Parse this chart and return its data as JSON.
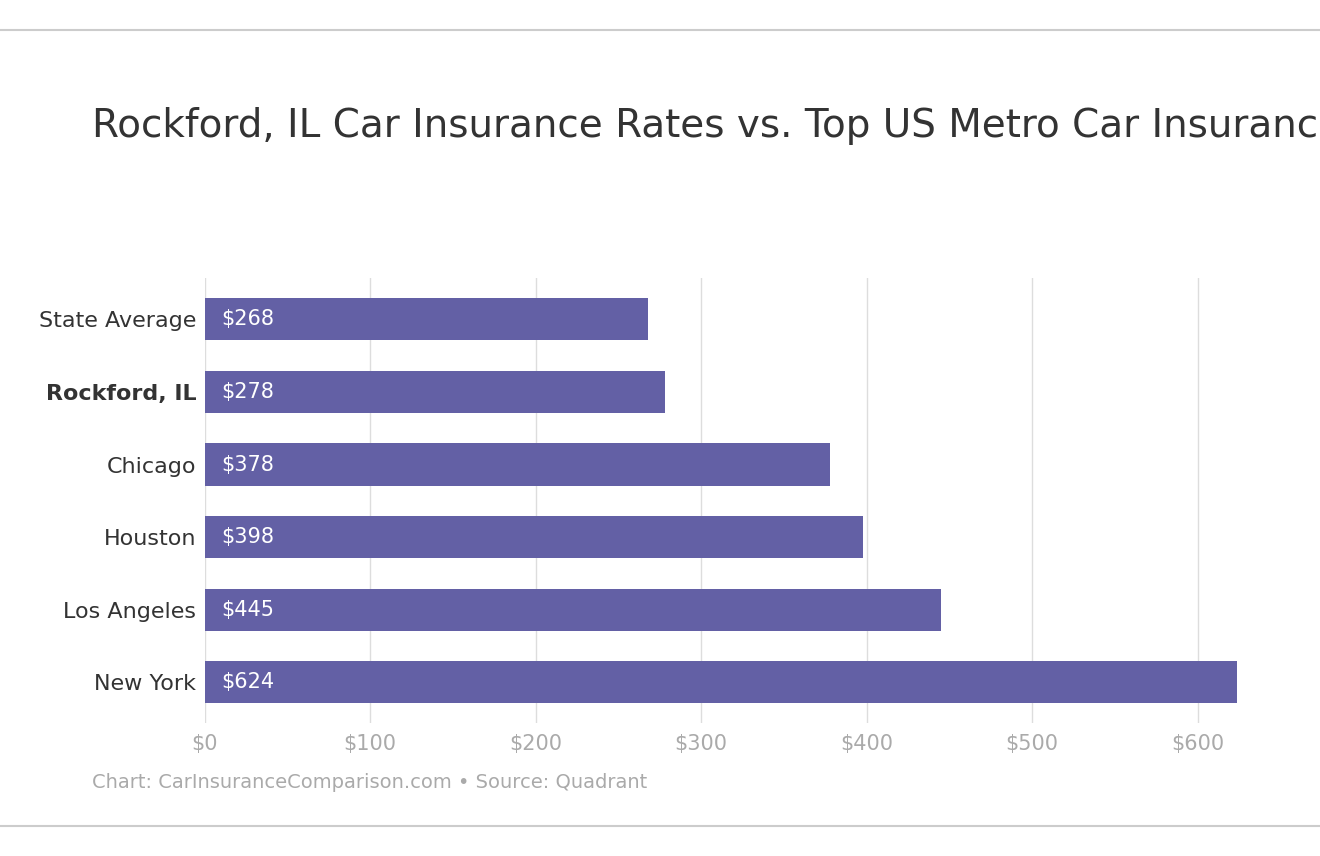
{
  "title": "Rockford, IL Car Insurance Rates vs. Top US Metro Car Insurance Rates",
  "categories": [
    "State Average",
    "Rockford, IL",
    "Chicago",
    "Houston",
    "Los Angeles",
    "New York"
  ],
  "values": [
    268,
    278,
    378,
    398,
    445,
    624
  ],
  "bar_color": "#6360a5",
  "label_color": "#ffffff",
  "title_fontsize": 28,
  "label_fontsize": 15,
  "tick_fontsize": 15,
  "ytick_fontsize": 16,
  "bold_category": "Rockford, IL",
  "xlim": [
    0,
    650
  ],
  "xticks": [
    0,
    100,
    200,
    300,
    400,
    500,
    600
  ],
  "xtick_labels": [
    "$0",
    "$100",
    "$200",
    "$300",
    "$400",
    "$500",
    "$600"
  ],
  "footer_text": "Chart: CarInsuranceComparison.com • Source: Quadrant",
  "footer_fontsize": 14,
  "background_color": "#ffffff",
  "grid_color": "#dddddd",
  "bar_height": 0.58,
  "title_color": "#333333",
  "ytick_color": "#333333",
  "xtick_color": "#aaaaaa",
  "footer_color": "#aaaaaa"
}
